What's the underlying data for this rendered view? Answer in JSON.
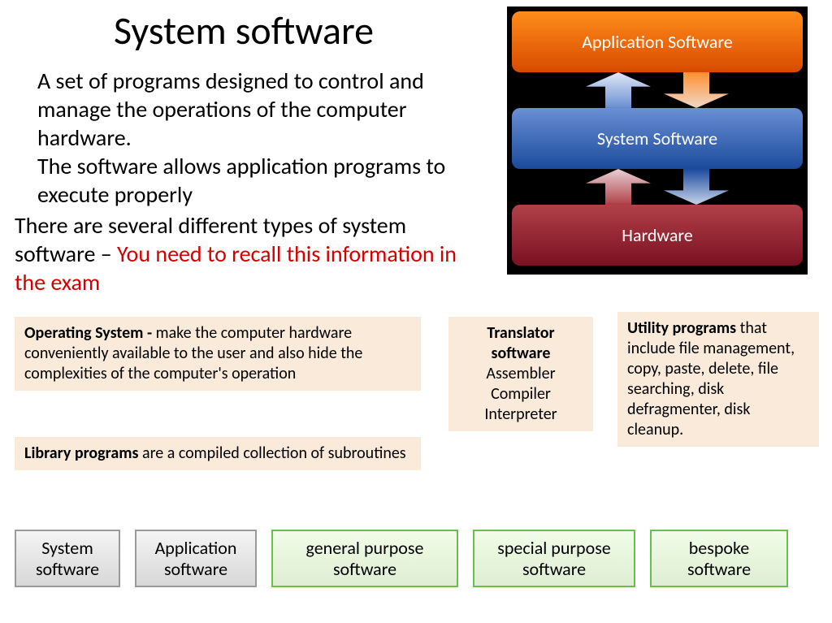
{
  "title": "System software",
  "para1": "A set of programs designed to control and manage the operations of the computer hardware.\nThe software allows application programs to execute properly",
  "para2_black": "There are several different types of system software – ",
  "para2_red": "You need to recall this information in the exam",
  "diagram": {
    "layers": {
      "app": "Application Software",
      "sys": "System Software",
      "hw": "Hardware"
    },
    "colors": {
      "app_grad": [
        "#ff8c1a",
        "#d84a00"
      ],
      "sys_grad": [
        "#6a8fd4",
        "#1b4a9c"
      ],
      "hw_grad": [
        "#b14048",
        "#7a1020"
      ],
      "bg": "#000000",
      "text": "#ffffff"
    }
  },
  "boxes": {
    "os_bold": "Operating System - ",
    "os_rest": "make the computer hardware conveniently available to the user and also hide the complexities of the computer's operation",
    "lib_bold": "Library programs ",
    "lib_rest": "are a compiled collection of subroutines",
    "trans_bold": "Translator software",
    "trans_lines": "Assembler\nCompiler\nInterpreter",
    "util_bold": "Utility programs",
    "util_rest": " that include file management, copy, paste, delete, file searching, disk defragmenter, disk cleanup.",
    "bg_color": "#faeada"
  },
  "nav": {
    "items": [
      {
        "label": "System software",
        "style": "gray"
      },
      {
        "label": "Application software",
        "style": "gray"
      },
      {
        "label": "general purpose software",
        "style": "green"
      },
      {
        "label": "special purpose software",
        "style": "green"
      },
      {
        "label": "bespoke software",
        "style": "green"
      }
    ],
    "green_border": "#6abf4b",
    "gray_border": "#9a9a9a"
  },
  "fonts": {
    "title_size": 48,
    "body_size": 28,
    "box_size": 20,
    "nav_size": 22,
    "diagram_size": 22
  }
}
